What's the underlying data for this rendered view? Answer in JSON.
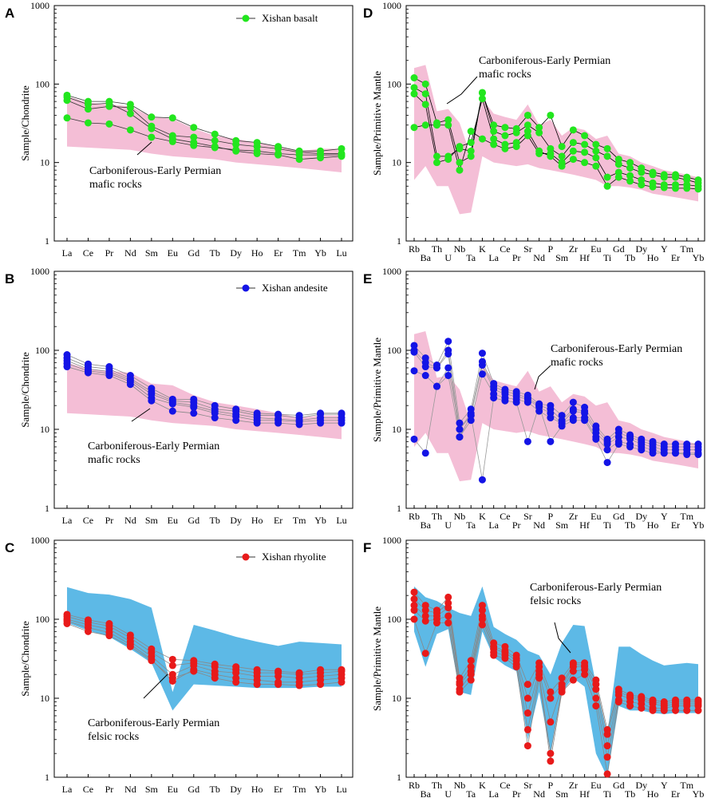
{
  "figure": {
    "description_labels": [
      "A",
      "B",
      "C",
      "D",
      "E",
      "F"
    ]
  },
  "chart_data": [
    {
      "id": "A",
      "type": "line",
      "scale": "log",
      "ylabel": "Sample/Chondrite",
      "ylim": [
        1,
        1000
      ],
      "yticks": [
        "1",
        "10",
        "100",
        "1000"
      ],
      "categories": [
        "La",
        "Ce",
        "Pr",
        "Nd",
        "Sm",
        "Eu",
        "Gd",
        "Tb",
        "Dy",
        "Ho",
        "Er",
        "Tm",
        "Yb",
        "Lu"
      ],
      "legend": "Xishan basalt",
      "color": "#22e61e",
      "line_color": "#333333",
      "field": {
        "color": "#f4bed6",
        "label": [
          "Carboniferous-Early Permian",
          "mafic rocks"
        ],
        "upper": [
          70,
          58,
          55,
          52,
          38,
          36,
          27,
          22,
          20,
          18,
          16,
          14,
          15,
          15
        ],
        "lower": [
          16,
          15.5,
          15,
          14.5,
          13,
          12,
          11.5,
          11,
          10,
          9.5,
          9,
          8.5,
          8,
          7.5
        ]
      },
      "series": [
        {
          "name": "s1",
          "values": [
            72,
            60,
            60,
            55,
            38,
            37,
            28,
            23,
            19,
            18,
            16,
            14,
            14,
            15
          ]
        },
        {
          "name": "s2",
          "values": [
            62,
            48,
            52,
            50,
            29,
            22,
            21,
            19,
            17,
            16,
            15,
            13.5,
            13,
            13
          ]
        },
        {
          "name": "s3",
          "values": [
            37,
            32,
            31,
            26,
            21,
            18.5,
            16.5,
            15.5,
            14.5,
            14,
            13,
            12.5,
            12.5,
            12.5
          ]
        },
        {
          "name": "s4",
          "values": [
            68,
            55,
            57,
            42,
            27,
            20,
            18,
            16,
            14,
            13,
            12.5,
            11,
            11.5,
            12
          ]
        }
      ]
    },
    {
      "id": "B",
      "type": "line",
      "scale": "log",
      "ylabel": "Sample/Chondrite",
      "ylim": [
        1,
        1000
      ],
      "yticks": [
        "1",
        "10",
        "100",
        "1000"
      ],
      "categories": [
        "La",
        "Ce",
        "Pr",
        "Nd",
        "Sm",
        "Eu",
        "Gd",
        "Tb",
        "Dy",
        "Ho",
        "Er",
        "Tm",
        "Yb",
        "Lu"
      ],
      "legend": "Xishan andesite",
      "color": "#1414e6",
      "line_color": "#888888",
      "field": {
        "color": "#f4bed6",
        "label": [
          "Carboniferous-Early Permian",
          "mafic rocks"
        ],
        "upper": [
          70,
          58,
          55,
          52,
          38,
          36,
          27,
          22,
          20,
          18,
          16,
          14,
          15,
          15
        ],
        "lower": [
          16,
          15.5,
          15,
          14.5,
          13,
          12,
          11.5,
          11,
          10,
          9.5,
          9,
          8.5,
          8,
          7.5
        ]
      },
      "series": [
        {
          "name": "s1",
          "values": [
            88,
            67,
            62,
            48,
            33,
            24,
            24,
            20,
            18,
            16,
            15.5,
            15,
            16,
            16
          ]
        },
        {
          "name": "s2",
          "values": [
            80,
            62,
            58,
            44,
            30,
            23,
            22,
            18,
            17,
            15,
            15,
            14,
            15.5,
            15.5
          ]
        },
        {
          "name": "s3",
          "values": [
            74,
            58,
            54,
            42,
            28,
            22,
            20,
            17,
            15.5,
            14,
            13.5,
            13,
            14,
            14
          ]
        },
        {
          "name": "s4",
          "values": [
            68,
            55,
            51,
            40,
            25,
            21,
            19,
            16,
            14.5,
            13,
            13,
            12.5,
            13,
            13
          ]
        },
        {
          "name": "s5",
          "values": [
            62,
            52,
            48,
            37,
            23,
            17,
            16,
            14,
            13,
            12,
            12,
            11.5,
            12,
            12
          ]
        }
      ]
    },
    {
      "id": "C",
      "type": "line",
      "scale": "log",
      "ylabel": "Sample/Chondrite",
      "ylim": [
        1,
        1000
      ],
      "yticks": [
        "1",
        "10",
        "100",
        "1000"
      ],
      "categories": [
        "La",
        "Ce",
        "Pr",
        "Nd",
        "Sm",
        "Eu",
        "Gd",
        "Tb",
        "Dy",
        "Ho",
        "Er",
        "Tm",
        "Yb",
        "Lu"
      ],
      "legend": "Xishan rhyolite",
      "color": "#e81a1a",
      "line_color": "#888888",
      "field": {
        "color": "#5db9e6",
        "label": [
          "Carboniferous-Early Permian",
          "felsic rocks"
        ],
        "upper": [
          255,
          215,
          205,
          180,
          140,
          12,
          85,
          72,
          60,
          52,
          46,
          52,
          50,
          48
        ],
        "lower": [
          90,
          72,
          60,
          42,
          28,
          7,
          15,
          14.5,
          14,
          13.5,
          13.5,
          13.5,
          14,
          14
        ]
      },
      "series": [
        {
          "name": "s1",
          "values": [
            115,
            98,
            88,
            63,
            42,
            31,
            30,
            27,
            25,
            23,
            22,
            21,
            23,
            23
          ]
        },
        {
          "name": "s2",
          "values": [
            108,
            92,
            82,
            58,
            38,
            26,
            28,
            25,
            23,
            21,
            21,
            20,
            21,
            22
          ]
        },
        {
          "name": "s3",
          "values": [
            100,
            85,
            75,
            52,
            34,
            20,
            26,
            22,
            21,
            19,
            19,
            18,
            19,
            20
          ]
        },
        {
          "name": "s4",
          "values": [
            95,
            78,
            68,
            48,
            31,
            16.5,
            23,
            20,
            18,
            17,
            16,
            16,
            17,
            18
          ]
        },
        {
          "name": "s5",
          "values": [
            88,
            70,
            62,
            45,
            30,
            18,
            22,
            18,
            16,
            15,
            15,
            14.5,
            15,
            16
          ]
        }
      ]
    },
    {
      "id": "D",
      "type": "line",
      "scale": "log",
      "ylabel": "Sample/Primitive Mantle",
      "ylim": [
        1,
        1000
      ],
      "yticks": [
        "1",
        "10",
        "100",
        "1000"
      ],
      "categories": [
        "Rb",
        "Ba",
        "Th",
        "U",
        "Nb",
        "Ta",
        "K",
        "La",
        "Ce",
        "Pr",
        "Sr",
        "Nd",
        "P",
        "Sm",
        "Zr",
        "Hf",
        "Eu",
        "Ti",
        "Gd",
        "Tb",
        "Dy",
        "Ho",
        "Y",
        "Er",
        "Tm",
        "Yb"
      ],
      "legend": "",
      "color": "#22e61e",
      "line_color": "#000000",
      "field": {
        "color": "#f4bed6",
        "label": [
          "Carboniferous-Early Permian",
          "mafic rocks"
        ],
        "upper": [
          160,
          175,
          45,
          48,
          32,
          12,
          65,
          42,
          38,
          35,
          55,
          30,
          35,
          22,
          28,
          26,
          20,
          22,
          13,
          12,
          10,
          9,
          8,
          7.5,
          7,
          6.5
        ],
        "lower": [
          6,
          9,
          5,
          5,
          2.2,
          2.3,
          12,
          10,
          9.5,
          9,
          9.5,
          8.5,
          8,
          7.5,
          7,
          6.5,
          6,
          5,
          5,
          4.8,
          4.5,
          4,
          3.8,
          3.6,
          3.4,
          3.2
        ]
      },
      "series": [
        {
          "name": "s1",
          "values": [
            120,
            100,
            32,
            35,
            10,
            12,
            77,
            30,
            28,
            27,
            40,
            28,
            40,
            16,
            26,
            22,
            17,
            15,
            11,
            10,
            8.5,
            7.5,
            7,
            7,
            6.5,
            6
          ]
        },
        {
          "name": "s2",
          "values": [
            90,
            75,
            12,
            12,
            15,
            14,
            78,
            25,
            22,
            24,
            30,
            24,
            15,
            12,
            18,
            17,
            14,
            12,
            9.5,
            8.5,
            7.5,
            7,
            6.5,
            6.5,
            6,
            5.5
          ]
        },
        {
          "name": "s3",
          "values": [
            28,
            30,
            30,
            30,
            8,
            25,
            20,
            17,
            15,
            16,
            22,
            13,
            13,
            10,
            14,
            13.5,
            11.5,
            6.5,
            7.5,
            6.8,
            6,
            5.5,
            5.2,
            5.2,
            5.2,
            5
          ]
        },
        {
          "name": "s4",
          "values": [
            75,
            55,
            10,
            11,
            16,
            18,
            65,
            20,
            17,
            18,
            25,
            14,
            12,
            9,
            11,
            10,
            9,
            5,
            6.5,
            5.8,
            5.2,
            4.9,
            4.8,
            4.7,
            4.7,
            4.6
          ]
        }
      ]
    },
    {
      "id": "E",
      "type": "line",
      "scale": "log",
      "ylabel": "Sample/Primitive Mantle",
      "ylim": [
        1,
        1000
      ],
      "yticks": [
        "1",
        "10",
        "100",
        "1000"
      ],
      "categories": [
        "Rb",
        "Ba",
        "Th",
        "U",
        "Nb",
        "Ta",
        "K",
        "La",
        "Ce",
        "Pr",
        "Sr",
        "Nd",
        "P",
        "Sm",
        "Zr",
        "Hf",
        "Eu",
        "Ti",
        "Gd",
        "Tb",
        "Dy",
        "Ho",
        "Y",
        "Er",
        "Tm",
        "Yb"
      ],
      "legend": "",
      "color": "#1414e6",
      "line_color": "#999999",
      "field": {
        "color": "#f4bed6",
        "label": [
          "Carboniferous-Early Permian",
          "mafic rocks"
        ],
        "upper": [
          160,
          175,
          45,
          48,
          32,
          12,
          65,
          42,
          38,
          35,
          55,
          30,
          35,
          22,
          28,
          26,
          20,
          22,
          13,
          12,
          10,
          9,
          8,
          7.5,
          7,
          6.5
        ],
        "lower": [
          6,
          9,
          5,
          5,
          2.2,
          2.3,
          12,
          10,
          9.5,
          9,
          9.5,
          8.5,
          8,
          7.5,
          7,
          6.5,
          6,
          5,
          5,
          4.8,
          4.5,
          4,
          3.8,
          3.6,
          3.4,
          3.2
        ]
      },
      "series": [
        {
          "name": "s1",
          "values": [
            115,
            80,
            65,
            130,
            12,
            18,
            92,
            38,
            32,
            30,
            27,
            21,
            20,
            15,
            22,
            19,
            11,
            7.5,
            10,
            8.5,
            7.5,
            7,
            6.5,
            6.5,
            6.5,
            6.5
          ]
        },
        {
          "name": "s2",
          "values": [
            100,
            70,
            60,
            100,
            10,
            16,
            72,
            35,
            30,
            28,
            25,
            20,
            18,
            13,
            18,
            17,
            10,
            7,
            9,
            8,
            7,
            6.5,
            6,
            6,
            6,
            6
          ]
        },
        {
          "name": "s3",
          "values": [
            95,
            62,
            60,
            90,
            8,
            15,
            65,
            32,
            28,
            26,
            24,
            19,
            16,
            12,
            17,
            16,
            9,
            6.5,
            8,
            7.5,
            6.5,
            6,
            5.5,
            5.5,
            5.5,
            5.5
          ]
        },
        {
          "name": "s4",
          "values": [
            55,
            48,
            35,
            48,
            8,
            13,
            50,
            28,
            25,
            24,
            22,
            17,
            14,
            12,
            14,
            14,
            8,
            5.5,
            7,
            6.5,
            6,
            5.5,
            5,
            5,
            5,
            5
          ]
        },
        {
          "name": "s5",
          "values": [
            7.5,
            5,
            35,
            60,
            10,
            15,
            2.3,
            25,
            23,
            22,
            7,
            20,
            7,
            11,
            13,
            13,
            7.5,
            3.8,
            6.5,
            6,
            5.5,
            5,
            5,
            5,
            4.8,
            4.8
          ]
        }
      ]
    },
    {
      "id": "F",
      "type": "line",
      "scale": "log",
      "ylabel": "Sample/Primitive Mantle",
      "ylim": [
        1,
        1000
      ],
      "yticks": [
        "1",
        "10",
        "100",
        "1000"
      ],
      "categories": [
        "Rb",
        "Ba",
        "Th",
        "U",
        "Nb",
        "Ta",
        "K",
        "La",
        "Ce",
        "Pr",
        "Sr",
        "Nd",
        "P",
        "Sm",
        "Zr",
        "Hf",
        "Eu",
        "Ti",
        "Gd",
        "Tb",
        "Dy",
        "Ho",
        "Y",
        "Er",
        "Tm",
        "Yb"
      ],
      "legend": "",
      "color": "#e81a1a",
      "line_color": "#888888",
      "field": {
        "color": "#5db9e6",
        "label": [
          "Carboniferous-Early Permian",
          "felsic rocks"
        ],
        "upper": [
          260,
          190,
          170,
          140,
          120,
          110,
          260,
          80,
          65,
          55,
          40,
          35,
          20,
          50,
          85,
          82,
          15,
          3.5,
          45,
          45,
          36,
          30,
          26,
          27,
          28,
          27
        ],
        "lower": [
          70,
          25,
          65,
          75,
          12,
          11,
          70,
          33,
          26,
          22,
          3,
          12,
          2,
          12,
          18,
          14,
          2,
          1,
          8,
          7,
          7,
          6.5,
          6.3,
          6.5,
          6.5,
          6.5
        ]
      },
      "series": [
        {
          "name": "s1",
          "values": [
            220,
            150,
            130,
            190,
            18,
            30,
            150,
            50,
            45,
            35,
            15,
            28,
            12,
            18,
            28,
            28,
            17,
            4,
            13,
            11,
            10.5,
            9.5,
            9,
            9.5,
            9.5,
            9.5
          ]
        },
        {
          "name": "s2",
          "values": [
            180,
            130,
            120,
            160,
            16,
            25,
            130,
            45,
            40,
            32,
            10,
            25,
            10,
            15,
            27,
            26,
            15,
            3.5,
            12,
            10.5,
            10,
            9,
            8.5,
            9,
            9,
            9
          ]
        },
        {
          "name": "s3",
          "values": [
            150,
            110,
            110,
            140,
            15,
            22,
            110,
            42,
            38,
            30,
            6.5,
            22,
            5,
            14,
            25,
            25,
            13,
            2.5,
            11,
            10,
            9.5,
            8.5,
            8,
            8.5,
            8.5,
            8.5
          ]
        },
        {
          "name": "s4",
          "values": [
            130,
            95,
            100,
            110,
            13,
            20,
            100,
            38,
            35,
            27,
            4,
            20,
            2,
            13,
            22,
            23,
            10,
            1.8,
            9.5,
            9,
            8.5,
            7.5,
            7.5,
            8,
            8,
            8
          ]
        },
        {
          "name": "s5",
          "values": [
            100,
            37,
            90,
            90,
            12,
            17,
            85,
            35,
            32,
            25,
            2.5,
            18,
            1.6,
            12,
            17,
            20,
            8,
            1.1,
            9,
            8,
            7.5,
            7,
            7,
            7,
            7,
            7
          ]
        }
      ]
    }
  ]
}
